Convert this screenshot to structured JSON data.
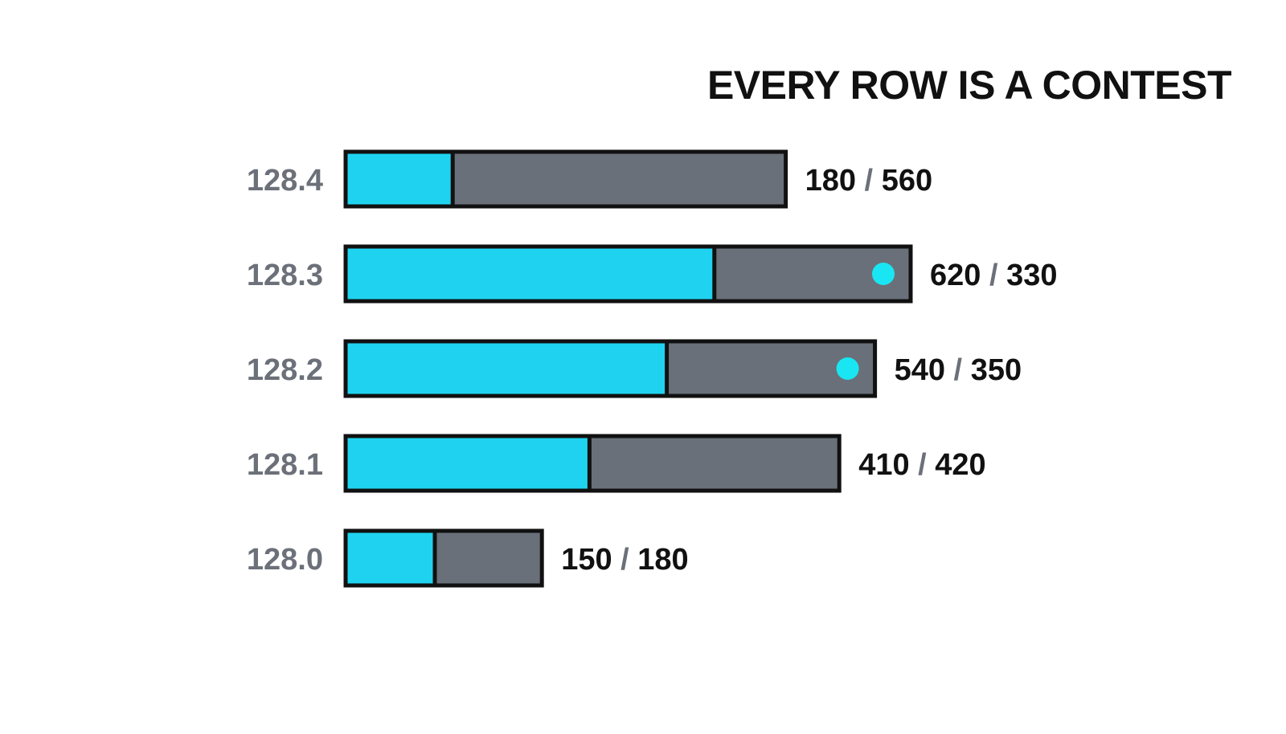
{
  "colors": {
    "primary": "#1fd3f0",
    "secondary": "#697079",
    "outline": "#111111",
    "marker": "#19e6f2",
    "label_muted": "#6b7079",
    "text": "#111111"
  },
  "chart_data": {
    "type": "bar",
    "orientation": "horizontal",
    "stacked": true,
    "title": "EVERY ROW IS A CONTEST",
    "title_position": "top-right",
    "categories": [
      "128.4",
      "128.3",
      "128.2",
      "128.1",
      "128.0"
    ],
    "series": [
      {
        "values": [
          180,
          620,
          540,
          410,
          150
        ]
      },
      {
        "values": [
          560,
          330,
          350,
          420,
          180
        ]
      }
    ],
    "value_labels": [
      "180 / 560",
      "620 / 330",
      "540 / 350",
      "410 / 420",
      "150 / 180"
    ],
    "markers": [
      false,
      true,
      true,
      false,
      false
    ],
    "grid": false,
    "legend": "none"
  }
}
